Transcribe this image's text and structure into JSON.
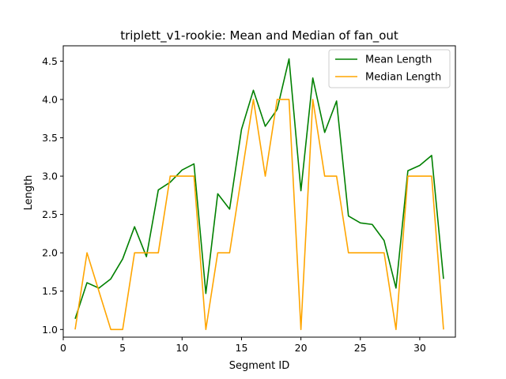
{
  "chart_data": {
    "type": "line",
    "title": "triplett_v1-rookie: Mean and Median of fan_out",
    "xlabel": "Segment ID",
    "ylabel": "Length",
    "xlim": [
      0,
      33
    ],
    "ylim": [
      0.9,
      4.7
    ],
    "xticks": [
      0,
      5,
      10,
      15,
      20,
      25,
      30
    ],
    "yticks": [
      1.0,
      1.5,
      2.0,
      2.5,
      3.0,
      3.5,
      4.0,
      4.5
    ],
    "ytick_labels": [
      "1.0",
      "1.5",
      "2.0",
      "2.5",
      "3.0",
      "3.5",
      "4.0",
      "4.5"
    ],
    "grid": false,
    "legend_position": "top-right",
    "x": [
      1,
      2,
      3,
      4,
      5,
      6,
      7,
      8,
      9,
      10,
      11,
      12,
      13,
      14,
      15,
      16,
      17,
      18,
      19,
      20,
      21,
      22,
      23,
      24,
      25,
      26,
      27,
      28,
      29,
      30,
      31,
      32
    ],
    "series": [
      {
        "name": "Mean Length",
        "color": "#008000",
        "values": [
          1.14,
          1.61,
          1.54,
          1.66,
          1.92,
          2.34,
          1.95,
          2.82,
          2.92,
          3.08,
          3.16,
          1.47,
          2.77,
          2.57,
          3.61,
          4.12,
          3.65,
          3.87,
          4.53,
          2.81,
          4.28,
          3.57,
          3.98,
          2.48,
          2.39,
          2.37,
          2.16,
          1.54,
          3.07,
          3.14,
          3.27,
          1.66
        ]
      },
      {
        "name": "Median Length",
        "color": "#FFA500",
        "values": [
          1.0,
          2.0,
          1.5,
          1.0,
          1.0,
          2.0,
          2.0,
          2.0,
          3.0,
          3.0,
          3.0,
          1.0,
          2.0,
          2.0,
          3.0,
          4.0,
          3.0,
          4.0,
          4.0,
          1.0,
          4.0,
          3.0,
          3.0,
          2.0,
          2.0,
          2.0,
          2.0,
          1.0,
          3.0,
          3.0,
          3.0,
          1.0
        ]
      }
    ]
  }
}
